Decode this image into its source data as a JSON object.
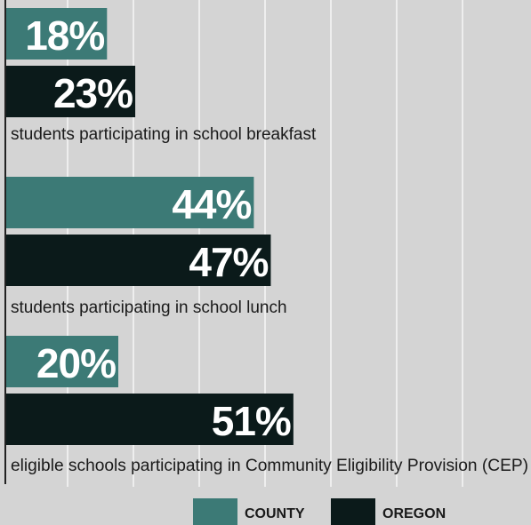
{
  "colors": {
    "background": "#d4d4d4",
    "county": "#3c7a76",
    "oregon": "#0b1a1a",
    "gridline": "#ffffff",
    "axis": "#222222",
    "label_text": "#1a1a1a",
    "value_text_light": "#ffffff"
  },
  "chart_data": {
    "type": "bar",
    "orientation": "horizontal",
    "categories": [
      "students participating in school breakfast",
      "students participating in school lunch",
      "eligible schools participating in Community Eligibility Provision (CEP)"
    ],
    "series": [
      {
        "name": "COUNTY",
        "values": [
          18,
          44,
          20
        ],
        "labels": [
          "18%",
          "44%",
          "20%"
        ]
      },
      {
        "name": "OREGON",
        "values": [
          23,
          47,
          51
        ],
        "labels": [
          "23%",
          "47%",
          "51%"
        ]
      }
    ],
    "xlim": [
      0,
      100
    ],
    "grid": true,
    "legend_position": "bottom"
  }
}
